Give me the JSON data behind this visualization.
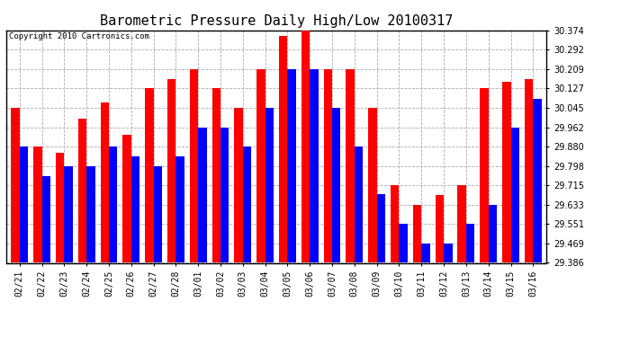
{
  "title": "Barometric Pressure Daily High/Low 20100317",
  "copyright": "Copyright 2010 Cartronics.com",
  "dates": [
    "02/21",
    "02/22",
    "02/23",
    "02/24",
    "02/25",
    "02/26",
    "02/27",
    "02/28",
    "03/01",
    "03/02",
    "03/03",
    "03/04",
    "03/05",
    "03/06",
    "03/07",
    "03/08",
    "03/09",
    "03/10",
    "03/11",
    "03/12",
    "03/13",
    "03/14",
    "03/15",
    "03/16"
  ],
  "highs": [
    30.045,
    29.88,
    29.855,
    30.0,
    30.068,
    29.93,
    30.127,
    30.168,
    30.209,
    30.127,
    30.045,
    30.209,
    30.35,
    30.374,
    30.209,
    30.209,
    30.045,
    29.715,
    29.633,
    29.675,
    29.715,
    30.127,
    30.155,
    30.168
  ],
  "lows": [
    29.88,
    29.755,
    29.798,
    29.798,
    29.88,
    29.838,
    29.798,
    29.838,
    29.962,
    29.962,
    29.882,
    30.045,
    30.209,
    30.209,
    30.045,
    29.88,
    29.68,
    29.551,
    29.469,
    29.469,
    29.551,
    29.633,
    29.962,
    30.082
  ],
  "high_color": "#FF0000",
  "low_color": "#0000FF",
  "bg_color": "#FFFFFF",
  "grid_color": "#AAAAAA",
  "ymin": 29.386,
  "ymax": 30.374,
  "yticks": [
    29.386,
    29.469,
    29.551,
    29.633,
    29.715,
    29.798,
    29.88,
    29.962,
    30.045,
    30.127,
    30.209,
    30.292,
    30.374
  ],
  "bar_width": 0.38,
  "title_fontsize": 11,
  "tick_fontsize": 7,
  "copyright_fontsize": 6.5
}
